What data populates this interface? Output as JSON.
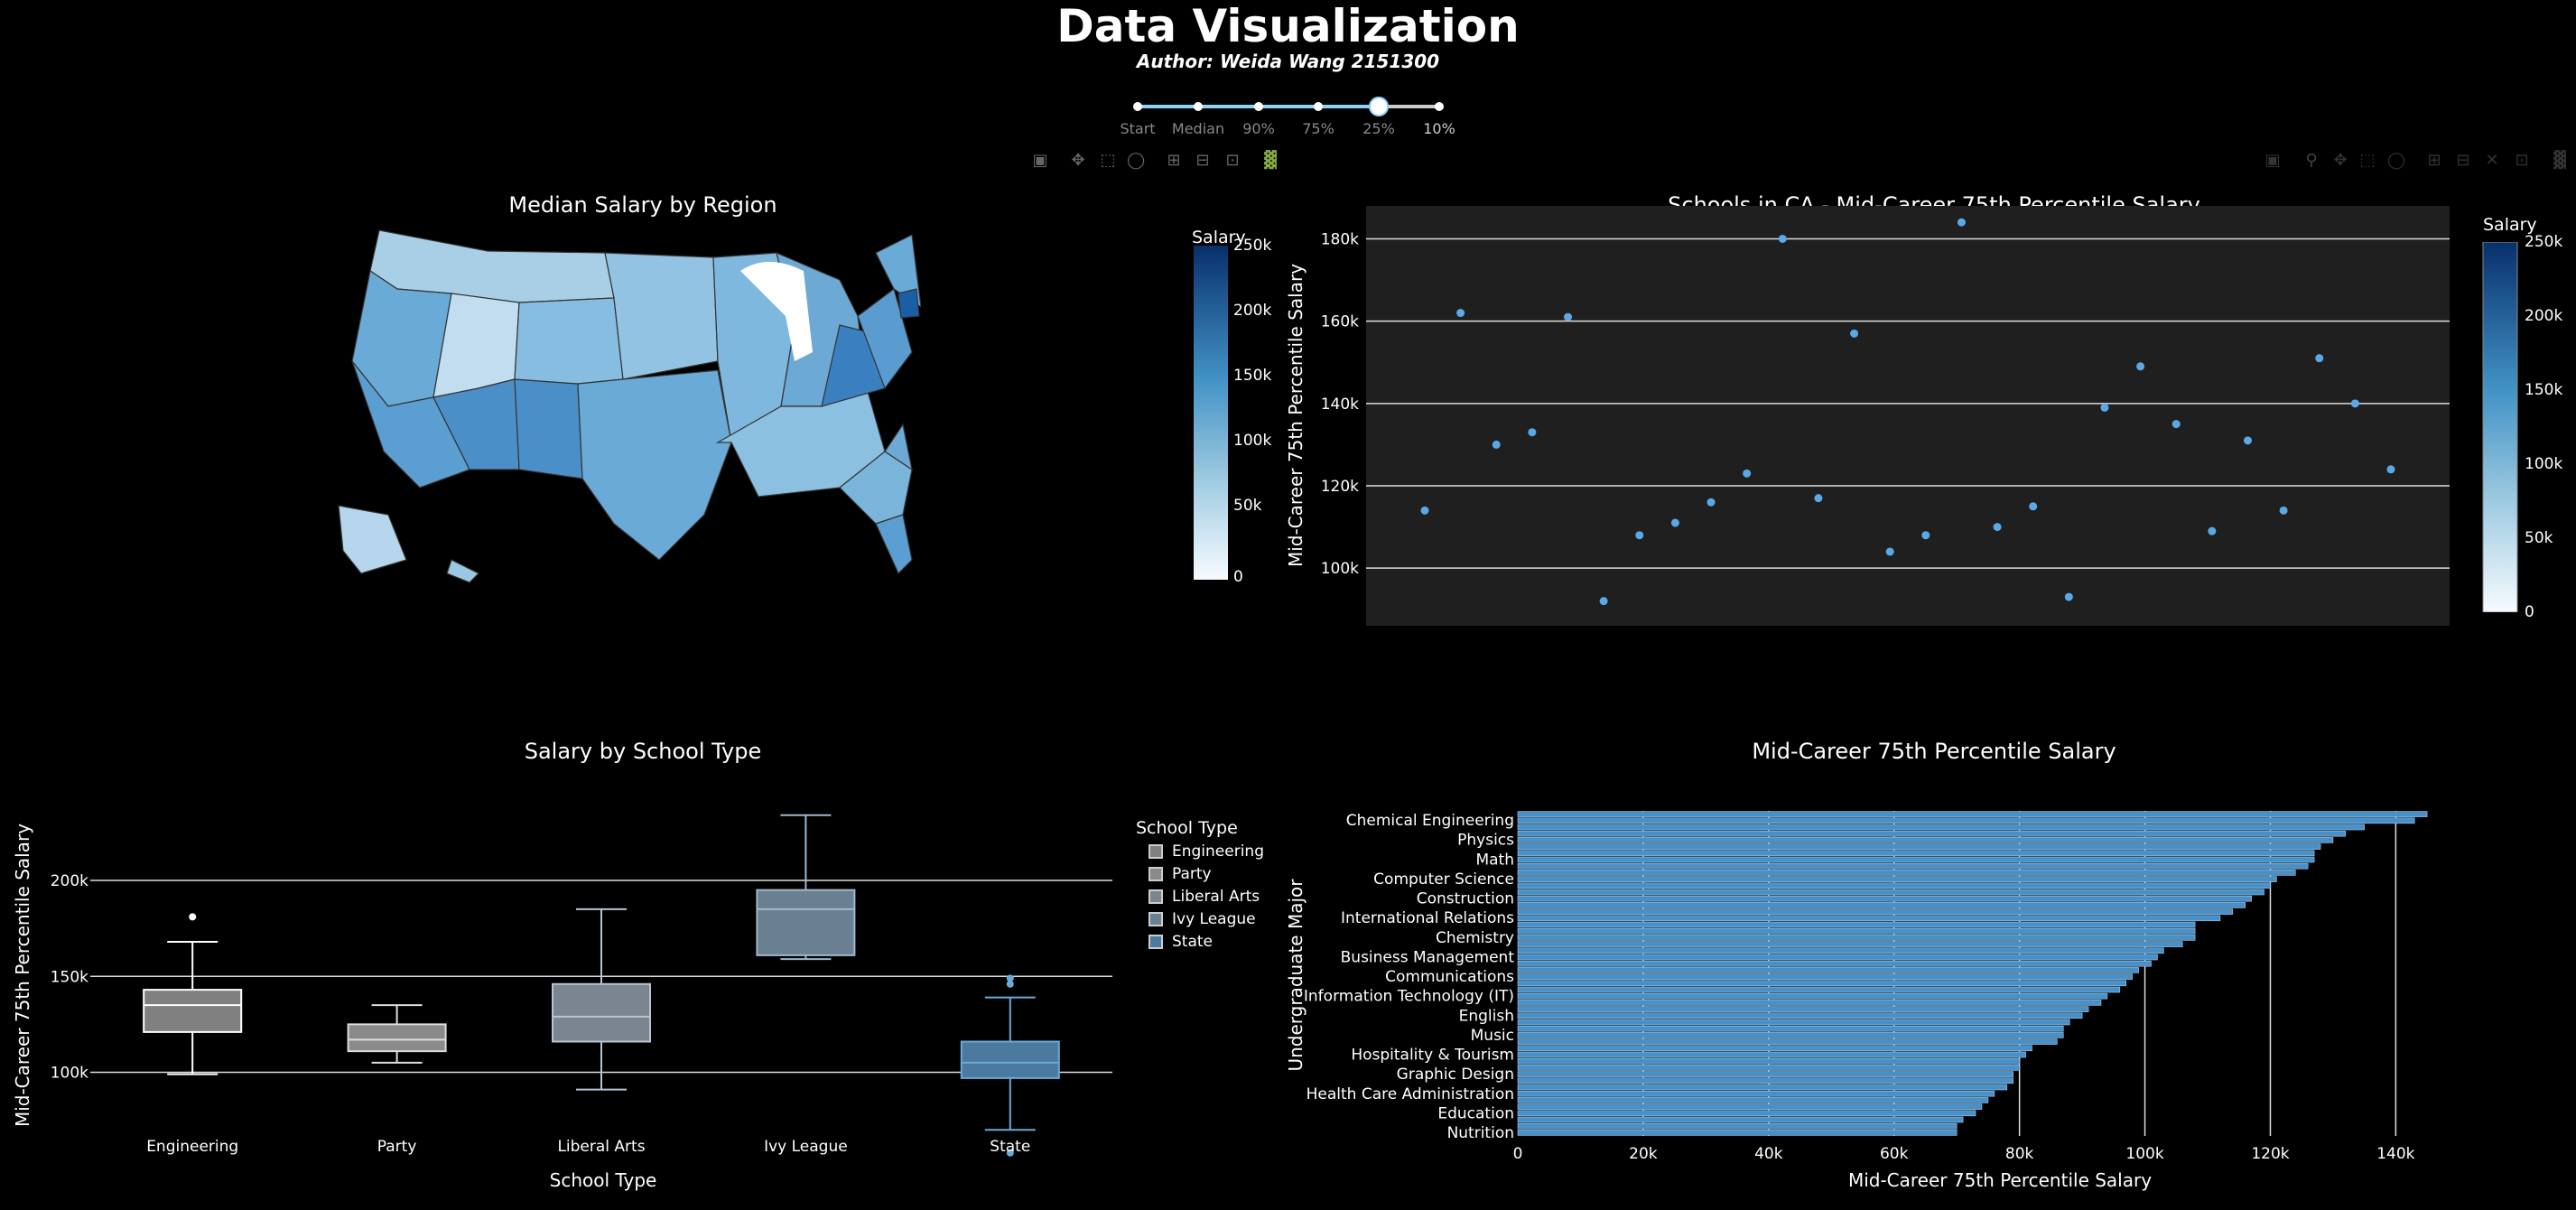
{
  "header": {
    "title": "Data Visualization",
    "author": "Author: Weida Wang 2151300"
  },
  "slider": {
    "steps": [
      "Start",
      "Median",
      "90%",
      "75%",
      "25%",
      "10%"
    ],
    "active_index": 4
  },
  "colors": {
    "background": "#000000",
    "plot_bg": "#1f1f1f",
    "point": "#5aa9e6",
    "bar": "#4a90c8",
    "box_fill": [
      "#808080",
      "#8a8a8a",
      "#7a8590",
      "#6a8090",
      "#4a7aa0"
    ]
  },
  "map_panel": {
    "title": "Median Salary by Region",
    "colorbar": {
      "title": "Salary",
      "ticks": [
        "250k",
        "200k",
        "150k",
        "100k",
        "50k",
        "0"
      ]
    }
  },
  "scatter_panel": {
    "colorbar": {
      "title": "Salary",
      "ticks": [
        "250k",
        "200k",
        "150k",
        "100k",
        "50k",
        "0"
      ]
    }
  },
  "box_panel": {
    "legend": {
      "title": "School Type",
      "items": [
        "Engineering",
        "Party",
        "Liberal Arts",
        "Ivy League",
        "State"
      ]
    }
  },
  "chart_data": [
    {
      "type": "choropleth",
      "title": "Median Salary by Region",
      "colorbar_title": "Salary",
      "range": [
        0,
        250000
      ]
    },
    {
      "type": "scatter",
      "title": "Schools in CA - Mid-Career 75th Percentile Salary",
      "xlabel": "",
      "ylabel": "Mid-Career 75th Percentile Salary",
      "ylim": [
        86000,
        188000
      ],
      "yticks": [
        100000,
        120000,
        140000,
        160000,
        180000
      ],
      "ytick_labels": [
        "100k",
        "120k",
        "140k",
        "160k",
        "180k"
      ],
      "y": [
        114000,
        162000,
        130000,
        133000,
        161000,
        92000,
        108000,
        111000,
        116000,
        123000,
        180000,
        117000,
        157000,
        104000,
        108000,
        184000,
        110000,
        115000,
        93000,
        139000,
        149000,
        135000,
        109000,
        131000,
        114000,
        151000,
        140000,
        124000
      ]
    },
    {
      "type": "box",
      "title": "Salary by School Type",
      "xlabel": "School Type",
      "ylabel": "Mid-Career 75th Percentile Salary",
      "ylim": [
        80000,
        240000
      ],
      "yticks": [
        100000,
        150000,
        200000
      ],
      "ytick_labels": [
        "100k",
        "150k",
        "200k"
      ],
      "categories": [
        "Engineering",
        "Party",
        "Liberal Arts",
        "Ivy League",
        "State"
      ],
      "boxes": [
        {
          "min": 99000,
          "q1": 121000,
          "median": 135000,
          "q3": 143000,
          "max": 168000,
          "outliers": [
            181000
          ]
        },
        {
          "min": 105000,
          "q1": 111000,
          "median": 117000,
          "q3": 125000,
          "max": 135000,
          "outliers": []
        },
        {
          "min": 91000,
          "q1": 116000,
          "median": 129000,
          "q3": 146000,
          "max": 185000,
          "outliers": []
        },
        {
          "min": 159000,
          "q1": 161000,
          "median": 185000,
          "q3": 195000,
          "max": 234000,
          "outliers": []
        },
        {
          "min": 70000,
          "q1": 97000,
          "median": 105000,
          "q3": 116000,
          "max": 139000,
          "outliers": [
            146000,
            149000,
            58000
          ]
        }
      ]
    },
    {
      "type": "bar",
      "orientation": "h",
      "title": "Mid-Career 75th Percentile Salary",
      "xlabel": "Mid-Career 75th Percentile Salary",
      "ylabel": "Undergraduate Major",
      "xlim": [
        0,
        147000
      ],
      "xticks": [
        0,
        20000,
        40000,
        60000,
        80000,
        100000,
        120000,
        140000
      ],
      "xtick_labels": [
        "0",
        "20k",
        "40k",
        "60k",
        "80k",
        "100k",
        "120k",
        "140k"
      ],
      "category_labels": [
        "Chemical Engineering",
        "Physics",
        "Math",
        "Computer Science",
        "Construction",
        "International Relations",
        "Chemistry",
        "Business Management",
        "Communications",
        "Information Technology (IT)",
        "English",
        "Music",
        "Hospitality & Tourism",
        "Graphic Design",
        "Health Care Administration",
        "Education",
        "Nutrition"
      ],
      "values": [
        145000,
        143000,
        135000,
        132000,
        130000,
        128000,
        127000,
        127000,
        126000,
        124000,
        121000,
        120000,
        119000,
        117000,
        116000,
        114000,
        112000,
        108000,
        108000,
        108000,
        106000,
        103000,
        102000,
        101000,
        99000,
        98000,
        97000,
        96000,
        94000,
        93000,
        91000,
        90000,
        88000,
        87000,
        87000,
        86000,
        82000,
        81000,
        80000,
        80000,
        79000,
        79000,
        78000,
        76000,
        75000,
        74000,
        73000,
        71000,
        70000,
        70000
      ]
    }
  ]
}
